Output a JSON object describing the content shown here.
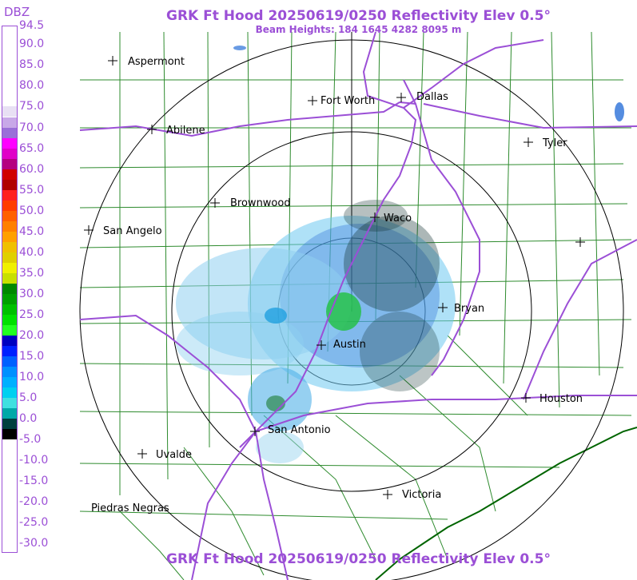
{
  "title": "GRK Ft Hood 20250619/0250 Reflectivity Elev 0.5°",
  "subtitle": "Beam Heights: 184 1645 4282 8095 m",
  "legend": {
    "unit": "DBZ",
    "labels": [
      "94.5",
      "90.0",
      "85.0",
      "80.0",
      "75.0",
      "70.0",
      "65.0",
      "60.0",
      "55.0",
      "50.0",
      "45.0",
      "40.0",
      "35.0",
      "30.0",
      "25.0",
      "20.0",
      "15.0",
      "10.0",
      "5.0",
      "0.0",
      "-5.0",
      "-10.0",
      "-15.0",
      "-20.0",
      "-25.0",
      "-30.0"
    ],
    "colors": [
      {
        "dbz": 80.0,
        "color": "#ffffff"
      },
      {
        "dbz": 75.0,
        "color": "#e8e0f4"
      },
      {
        "dbz": 72.5,
        "color": "#c8a8e8"
      },
      {
        "dbz": 70.0,
        "color": "#9a6fd8"
      },
      {
        "dbz": 67.5,
        "color": "#ff00ff"
      },
      {
        "dbz": 65.0,
        "color": "#e000c8"
      },
      {
        "dbz": 62.5,
        "color": "#b40080"
      },
      {
        "dbz": 60.0,
        "color": "#d00000"
      },
      {
        "dbz": 57.5,
        "color": "#b00000"
      },
      {
        "dbz": 55.0,
        "color": "#ff2020"
      },
      {
        "dbz": 52.5,
        "color": "#ff3c00"
      },
      {
        "dbz": 50.0,
        "color": "#ff6000"
      },
      {
        "dbz": 47.5,
        "color": "#ff8000"
      },
      {
        "dbz": 45.0,
        "color": "#ffa000"
      },
      {
        "dbz": 42.5,
        "color": "#f0c000"
      },
      {
        "dbz": 40.0,
        "color": "#e0d000"
      },
      {
        "dbz": 37.5,
        "color": "#f0f000"
      },
      {
        "dbz": 35.0,
        "color": "#c8e000"
      },
      {
        "dbz": 32.5,
        "color": "#008800"
      },
      {
        "dbz": 30.0,
        "color": "#00a000"
      },
      {
        "dbz": 27.5,
        "color": "#00c000"
      },
      {
        "dbz": 25.0,
        "color": "#00e000"
      },
      {
        "dbz": 22.5,
        "color": "#20ff20"
      },
      {
        "dbz": 20.0,
        "color": "#0000c0"
      },
      {
        "dbz": 17.5,
        "color": "#0020ff"
      },
      {
        "dbz": 15.0,
        "color": "#0060ff"
      },
      {
        "dbz": 12.5,
        "color": "#0090ff"
      },
      {
        "dbz": 10.0,
        "color": "#00b0ff"
      },
      {
        "dbz": 7.5,
        "color": "#00d0f0"
      },
      {
        "dbz": 5.0,
        "color": "#40e0e0"
      },
      {
        "dbz": 2.5,
        "color": "#00a8a8"
      },
      {
        "dbz": 0.0,
        "color": "#004040"
      },
      {
        "dbz": -2.5,
        "color": "#000000"
      },
      {
        "dbz": -5.0,
        "color": "#ffffff"
      }
    ]
  },
  "map": {
    "radar_site": "Ft Hood",
    "cities": [
      {
        "name": "Aspermont",
        "marker": "plus"
      },
      {
        "name": "Abilene",
        "marker": "plus"
      },
      {
        "name": "Fort Worth",
        "marker": "plus"
      },
      {
        "name": "Dallas",
        "marker": "plus"
      },
      {
        "name": "Tyler",
        "marker": "plus"
      },
      {
        "name": "Brownwood",
        "marker": "plus"
      },
      {
        "name": "Waco",
        "marker": "plus"
      },
      {
        "name": "San Angelo",
        "marker": "plus"
      },
      {
        "name": "Bryan",
        "marker": "plus"
      },
      {
        "name": "Austin",
        "marker": "plus"
      },
      {
        "name": "Houston",
        "marker": "plus"
      },
      {
        "name": "San Antonio",
        "marker": "plus"
      },
      {
        "name": "Uvalde",
        "marker": "plus"
      },
      {
        "name": "Victoria",
        "marker": "plus"
      },
      {
        "name": "Piedras Negras",
        "marker": "none"
      }
    ],
    "colors": {
      "county_lines": "#2e8b2e",
      "highways": "#9b4fd6",
      "range_rings": "#000000",
      "coast": "#006400"
    }
  }
}
